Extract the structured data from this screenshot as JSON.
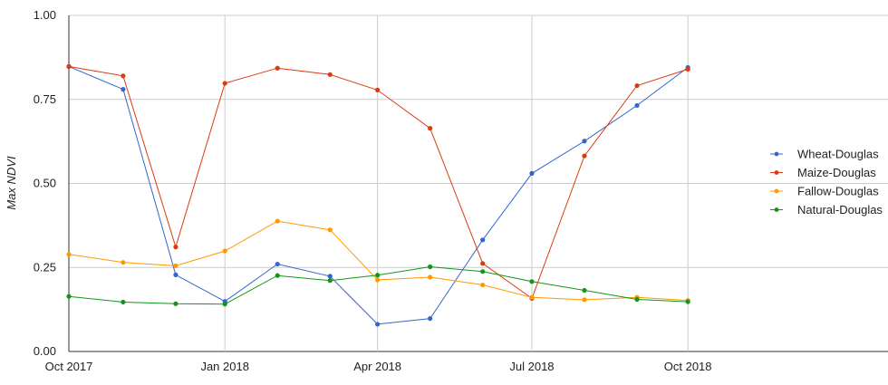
{
  "chart_data": {
    "type": "line",
    "title": "",
    "xlabel": "",
    "ylabel": "Max NDVI",
    "ylim": [
      0,
      1
    ],
    "yticks": [
      "0.00",
      "0.25",
      "0.50",
      "0.75",
      "1.00"
    ],
    "xlim": [
      "2017-10-01",
      "2019-01-27"
    ],
    "xticks": [
      {
        "date": "2017-10-01",
        "label": "Oct 2017"
      },
      {
        "date": "2018-01-01",
        "label": "Jan 2018"
      },
      {
        "date": "2018-04-01",
        "label": "Apr 2018"
      },
      {
        "date": "2018-07-01",
        "label": "Jul 2018"
      },
      {
        "date": "2018-10-01",
        "label": "Oct 2018"
      }
    ],
    "grid": true,
    "legend_position": "right",
    "x": [
      "2017-10-01",
      "2017-11-02",
      "2017-12-03",
      "2018-01-01",
      "2018-02-01",
      "2018-03-04",
      "2018-04-01",
      "2018-05-02",
      "2018-06-02",
      "2018-07-01",
      "2018-08-01",
      "2018-09-01",
      "2018-10-01"
    ],
    "series": [
      {
        "name": "Wheat-Douglas",
        "color": "#3366cc",
        "values": [
          0.848,
          0.78,
          0.228,
          0.149,
          0.26,
          0.224,
          0.081,
          0.098,
          0.332,
          0.53,
          0.626,
          0.732,
          0.845
        ]
      },
      {
        "name": "Maize-Douglas",
        "color": "#dc3912",
        "values": [
          0.848,
          0.82,
          0.311,
          0.798,
          0.843,
          0.824,
          0.778,
          0.664,
          0.262,
          0.158,
          0.582,
          0.791,
          0.84
        ]
      },
      {
        "name": "Fallow-Douglas",
        "color": "#ff9900",
        "values": [
          0.289,
          0.265,
          0.255,
          0.299,
          0.388,
          0.362,
          0.213,
          0.221,
          0.198,
          0.161,
          0.154,
          0.161,
          0.152
        ]
      },
      {
        "name": "Natural-Douglas",
        "color": "#109618",
        "values": [
          0.164,
          0.147,
          0.142,
          0.141,
          0.226,
          0.211,
          0.227,
          0.252,
          0.238,
          0.208,
          0.182,
          0.155,
          0.148
        ]
      }
    ]
  }
}
